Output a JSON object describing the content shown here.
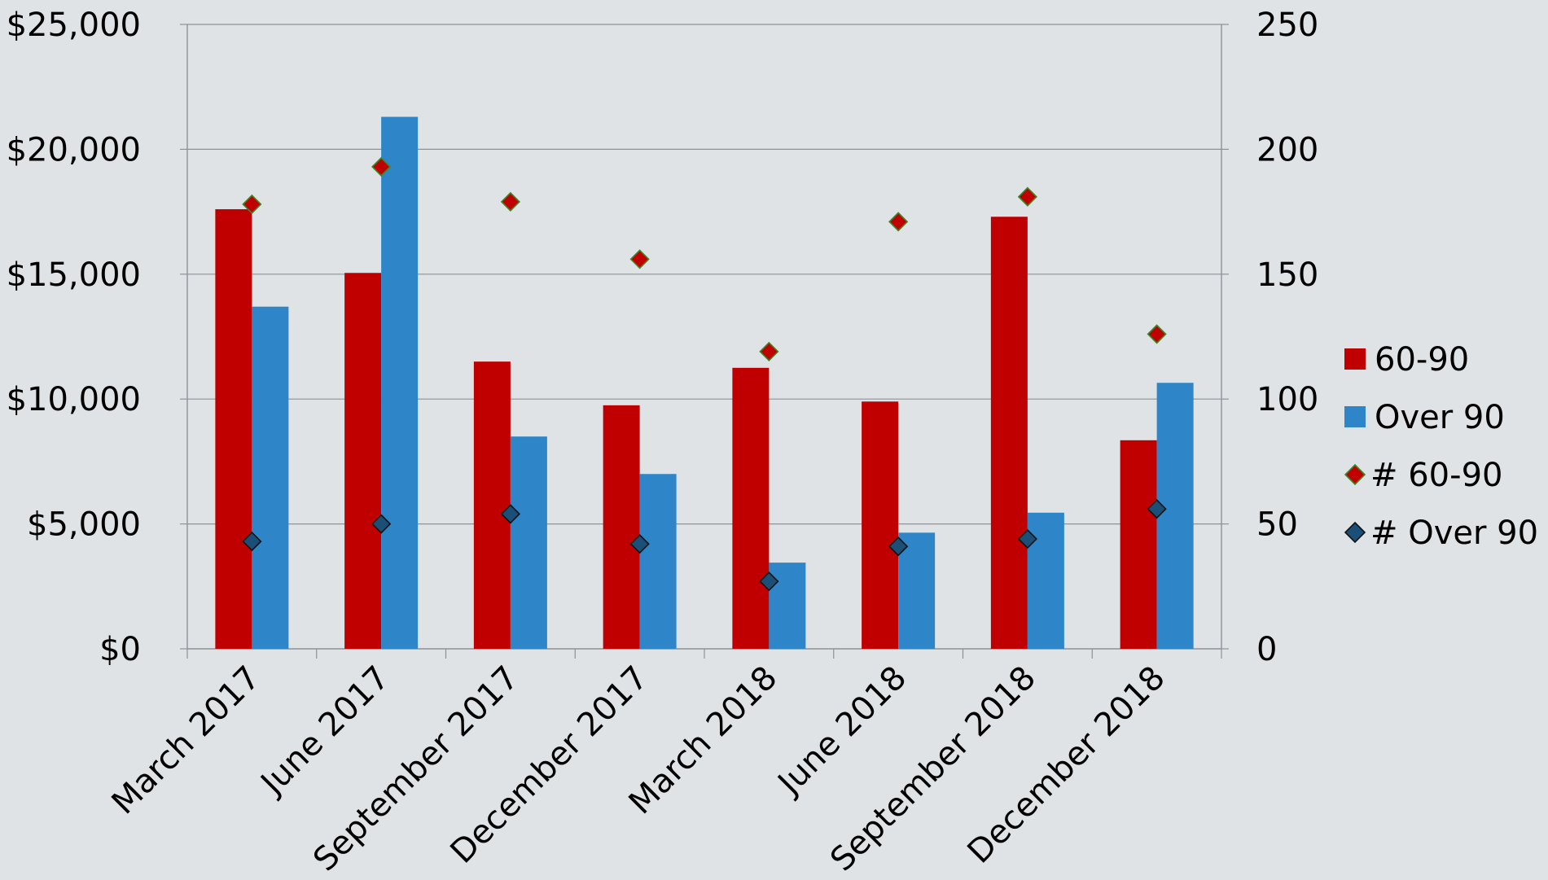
{
  "chart_data": {
    "type": "bar",
    "categories": [
      "March 2017",
      "June 2017",
      "September 2017",
      "December 2017",
      "March 2018",
      "June 2018",
      "September 2018",
      "December 2018"
    ],
    "series": [
      {
        "name": "60-90",
        "type": "bar",
        "axis": "left",
        "color": "#c00000",
        "values": [
          17600,
          15050,
          11500,
          9750,
          11250,
          9900,
          17300,
          8350
        ]
      },
      {
        "name": "Over 90",
        "type": "bar",
        "axis": "left",
        "color": "#2e86c8",
        "values": [
          13700,
          21300,
          8500,
          7000,
          3450,
          4650,
          5450,
          10650
        ]
      },
      {
        "name": "# 60-90",
        "type": "scatter",
        "axis": "right",
        "color": "#c00000",
        "edge_color": "#3a8a2a",
        "marker": "diamond",
        "values": [
          178,
          193,
          179,
          156,
          119,
          171,
          181,
          126
        ]
      },
      {
        "name": "# Over 90",
        "type": "scatter",
        "axis": "right",
        "color": "#1b4f78",
        "edge_color": "#111111",
        "marker": "diamond",
        "values": [
          43,
          50,
          54,
          42,
          27,
          41,
          44,
          56
        ]
      }
    ],
    "y_left": {
      "min": 0,
      "max": 25000,
      "ticks": [
        0,
        5000,
        10000,
        15000,
        20000,
        25000
      ],
      "tick_labels": [
        "$0",
        "$5,000",
        "$10,000",
        "$15,000",
        "$20,000",
        "$25,000"
      ]
    },
    "y_right": {
      "min": 0,
      "max": 250,
      "ticks": [
        0,
        50,
        100,
        150,
        200,
        250
      ],
      "tick_labels": [
        "0",
        "50",
        "100",
        "150",
        "200",
        "250"
      ]
    },
    "grid": true,
    "legend_position": "right"
  }
}
